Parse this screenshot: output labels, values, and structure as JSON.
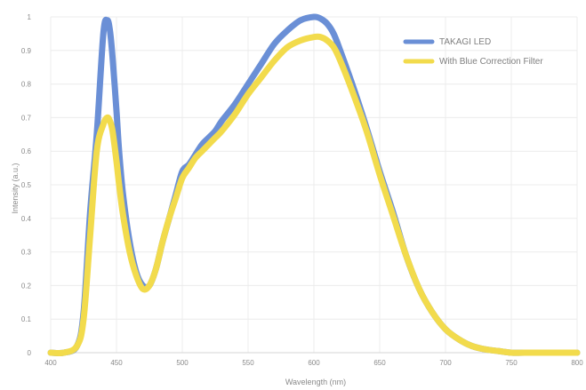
{
  "chart_data": {
    "type": "line",
    "title": "",
    "xlabel": "Wavelength (nm)",
    "ylabel": "Intensity (a.u.)",
    "xlim": [
      400,
      800
    ],
    "ylim": [
      0,
      1
    ],
    "x_ticks": [
      "400",
      "450",
      "500",
      "550",
      "600",
      "650",
      "700",
      "750",
      "800"
    ],
    "y_ticks": [
      "0",
      "0.1",
      "0.2",
      "0.3",
      "0.4",
      "0.5",
      "0.6",
      "0.7",
      "0.8",
      "0.9",
      "1"
    ],
    "grid": true,
    "legend_position": "top-right",
    "series": [
      {
        "name": "TAKAGI LED",
        "color": "#6a8fd6",
        "x": [
          400,
          410,
          420,
          425,
          430,
          435,
          440,
          443,
          445,
          447,
          450,
          452,
          455,
          460,
          465,
          470,
          475,
          480,
          485,
          490,
          495,
          500,
          505,
          510,
          515,
          520,
          525,
          530,
          540,
          550,
          560,
          570,
          580,
          590,
          600,
          605,
          610,
          615,
          620,
          630,
          640,
          650,
          660,
          670,
          680,
          690,
          700,
          710,
          720,
          730,
          740,
          750,
          760,
          780,
          800
        ],
        "y": [
          0,
          0,
          0.02,
          0.12,
          0.42,
          0.65,
          0.95,
          0.99,
          0.96,
          0.88,
          0.72,
          0.6,
          0.47,
          0.33,
          0.24,
          0.2,
          0.2,
          0.25,
          0.33,
          0.4,
          0.47,
          0.54,
          0.56,
          0.59,
          0.62,
          0.64,
          0.66,
          0.69,
          0.74,
          0.8,
          0.86,
          0.92,
          0.96,
          0.99,
          1.0,
          0.995,
          0.98,
          0.95,
          0.9,
          0.79,
          0.67,
          0.54,
          0.42,
          0.29,
          0.19,
          0.12,
          0.07,
          0.04,
          0.02,
          0.01,
          0.005,
          0,
          0,
          0,
          0
        ]
      },
      {
        "name": "With Blue Correction Filter",
        "color": "#f2db4c",
        "x": [
          400,
          410,
          420,
          425,
          430,
          435,
          440,
          443,
          445,
          447,
          450,
          452,
          455,
          460,
          465,
          470,
          475,
          480,
          485,
          490,
          495,
          500,
          505,
          510,
          515,
          520,
          525,
          530,
          540,
          550,
          560,
          570,
          580,
          590,
          600,
          605,
          610,
          615,
          620,
          630,
          640,
          650,
          660,
          670,
          680,
          690,
          700,
          710,
          720,
          730,
          740,
          750,
          760,
          780,
          800
        ],
        "y": [
          0,
          0,
          0.02,
          0.1,
          0.35,
          0.6,
          0.68,
          0.7,
          0.69,
          0.66,
          0.57,
          0.5,
          0.41,
          0.3,
          0.23,
          0.19,
          0.2,
          0.25,
          0.33,
          0.4,
          0.46,
          0.52,
          0.55,
          0.58,
          0.6,
          0.62,
          0.64,
          0.66,
          0.71,
          0.77,
          0.82,
          0.87,
          0.91,
          0.93,
          0.94,
          0.94,
          0.93,
          0.91,
          0.87,
          0.77,
          0.66,
          0.53,
          0.41,
          0.29,
          0.19,
          0.12,
          0.07,
          0.04,
          0.02,
          0.01,
          0.005,
          0,
          0,
          0,
          0
        ]
      }
    ]
  }
}
